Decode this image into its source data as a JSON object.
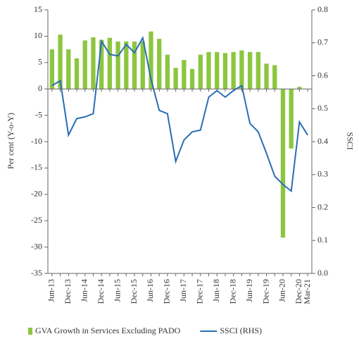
{
  "chart_data": {
    "type": "bar-line",
    "categories": [
      "Jun-13",
      null,
      "Dec-13",
      null,
      "Jun-14",
      null,
      "Dec-14",
      null,
      "Jun-15",
      null,
      "Dec-15",
      null,
      "Jun-16",
      null,
      "Dec-16",
      null,
      "Jun-17",
      null,
      "Dec-17",
      null,
      "Jun-18",
      null,
      "Dec-18",
      null,
      "Jun-19",
      null,
      "Dec-19",
      null,
      "Jun-20",
      null,
      "Dec-20",
      "Mar-21"
    ],
    "series": [
      {
        "name": "GVA Growth in Services Excluding PADO",
        "type": "bar",
        "color": "#8cc63f",
        "values": [
          7.5,
          10.3,
          7.5,
          5.8,
          9.2,
          9.8,
          9.3,
          9.7,
          9.0,
          9.0,
          9.0,
          9.0,
          10.9,
          9.5,
          6.5,
          4.0,
          5.5,
          3.8,
          6.5,
          7.0,
          7.0,
          6.8,
          7.0,
          7.3,
          7.0,
          7.0,
          4.8,
          4.5,
          -28.2,
          -11.3,
          0.4,
          null
        ]
      },
      {
        "name": "SSCI (RHS)",
        "type": "line",
        "axis": "y2",
        "color": "#2a6db5",
        "values": [
          0.57,
          0.585,
          0.42,
          0.47,
          0.475,
          0.485,
          0.705,
          0.665,
          0.66,
          0.695,
          0.67,
          0.715,
          0.59,
          0.495,
          0.485,
          0.34,
          0.405,
          0.43,
          0.435,
          0.535,
          0.555,
          0.535,
          0.555,
          0.57,
          0.455,
          0.43,
          0.365,
          0.295,
          0.27,
          0.25,
          0.46,
          0.42
        ]
      }
    ],
    "ylabel": "Per cent (Y-o-Y)",
    "y2label": "SSCI",
    "ylim": [
      -35,
      15
    ],
    "yticks": [
      -35,
      -30,
      -25,
      -20,
      -15,
      -10,
      -5,
      0,
      5,
      10,
      15
    ],
    "y2lim": [
      0,
      0.8
    ],
    "y2ticks": [
      {
        "value": 0,
        "label": "0.0"
      },
      0.1,
      0.2,
      0.3,
      0.4,
      0.5,
      0.6,
      0.7,
      0.8
    ]
  }
}
